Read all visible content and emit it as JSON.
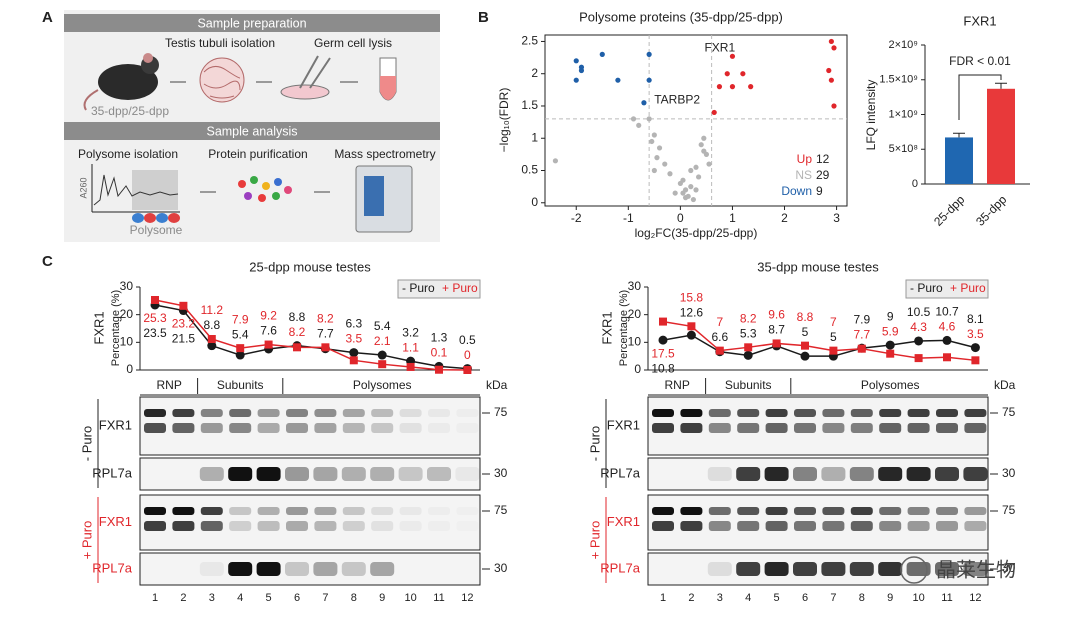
{
  "panel_labels": [
    "A",
    "B",
    "C"
  ],
  "panel_a": {
    "sections": [
      "Sample preparation",
      "Sample analysis"
    ],
    "steps": [
      "Testis tubuli isolation",
      "Germ cell lysis",
      "Polysome isolation",
      "Protein purification",
      "Mass spectrometry"
    ],
    "sample_label": "35-dpp/25-dpp",
    "polysome_label": "Polysome",
    "axis_label": "A260"
  },
  "chart_data": [
    {
      "type": "scatter",
      "title": "Polysome proteins (35-dpp/25-dpp)",
      "x_label": "log₂FC(35-dpp/25-dpp)",
      "y_label": "−log₁₀(FDR)",
      "xlim": [
        -2.6,
        3.2
      ],
      "ylim": [
        -0.05,
        2.6
      ],
      "xticks": [
        -2,
        -1,
        0,
        1,
        2,
        3
      ],
      "yticks": [
        0,
        0.5,
        1,
        1.5,
        2,
        2.5
      ],
      "thresholds": {
        "x": [
          -0.6,
          0.6
        ],
        "y": 1.3
      },
      "annotations": [
        "FXR1",
        "TARBP2"
      ],
      "series": [
        {
          "name": "Up",
          "count": 12,
          "color": "#e0262b",
          "x": [
            2.9,
            2.95,
            2.85,
            2.9,
            2.95,
            1.0,
            0.9,
            1.2,
            0.75,
            1.0,
            1.35,
            0.65
          ],
          "y": [
            2.5,
            2.4,
            2.05,
            1.9,
            1.5,
            2.27,
            2.0,
            2.0,
            1.8,
            1.8,
            1.8,
            1.4
          ]
        },
        {
          "name": "NS",
          "count": 29,
          "color": "#b4b4b4",
          "x": [
            -2.4,
            -0.8,
            -0.9,
            -0.6,
            -0.5,
            -0.4,
            -0.45,
            -0.3,
            -0.5,
            -0.2,
            0,
            0.05,
            0.1,
            0.15,
            0.2,
            0.3,
            0.35,
            0.4,
            0.45,
            0.5,
            0.55,
            0.3,
            0.25,
            -0.1,
            0.05,
            0.2,
            0.45,
            -0.55,
            0.1
          ],
          "y": [
            0.65,
            1.2,
            1.3,
            1.3,
            1.05,
            0.85,
            0.7,
            0.6,
            0.5,
            0.45,
            0.3,
            0.15,
            0.2,
            0.1,
            0.25,
            0.55,
            0.4,
            0.9,
            0.8,
            0.75,
            0.6,
            0.2,
            0.05,
            0.15,
            0.35,
            0.5,
            1.0,
            0.95,
            0.08
          ]
        },
        {
          "name": "Down",
          "count": 9,
          "color": "#1f5fa8",
          "x": [
            -2.0,
            -1.5,
            -1.9,
            -1.9,
            -2.0,
            -1.2,
            -0.6,
            -0.6,
            -0.7
          ],
          "y": [
            2.2,
            2.3,
            2.1,
            2.05,
            1.9,
            1.9,
            1.9,
            2.3,
            1.55
          ]
        }
      ]
    },
    {
      "type": "bar",
      "title": "FXR1",
      "y_label": "LFQ intensity",
      "categories": [
        "25-dpp",
        "35-dpp"
      ],
      "values": [
        670000000,
        1370000000
      ],
      "errors": [
        60000000,
        80000000
      ],
      "colors": [
        "#1f67b1",
        "#e8393a"
      ],
      "annotation": "FDR < 0.01",
      "ylim": [
        0,
        2000000000
      ],
      "yticks": [
        {
          "value": 0,
          "label": "0"
        },
        {
          "value": 500000000,
          "label": "5×10⁸"
        },
        {
          "value": 1000000000,
          "label": "1×10⁹"
        },
        {
          "value": 1500000000,
          "label": "1.5×10⁹"
        },
        {
          "value": 2000000000,
          "label": "2×10⁹"
        }
      ]
    },
    {
      "type": "line",
      "title": "25-dpp mouse testes",
      "protein": "FXR1",
      "y_label": "Percentage (%)",
      "categories": [
        "1",
        "2",
        "3",
        "4",
        "5",
        "6",
        "7",
        "8",
        "9",
        "10",
        "11",
        "12"
      ],
      "ylim": [
        0,
        30
      ],
      "yticks": [
        0,
        10,
        20,
        30
      ],
      "legend": "top-right",
      "series": [
        {
          "name": "- Puro",
          "color": "#1a1a1a",
          "values": [
            23.5,
            21.5,
            8.8,
            5.4,
            7.6,
            8.8,
            7.7,
            6.3,
            5.4,
            3.2,
            1.3,
            0.5
          ]
        },
        {
          "name": "+ Puro",
          "color": "#e0262b",
          "values": [
            25.3,
            23.2,
            11.2,
            7.9,
            9.2,
            8.2,
            8.2,
            3.5,
            2.1,
            1.1,
            0.1,
            0
          ]
        }
      ]
    },
    {
      "type": "line",
      "title": "35-dpp mouse testes",
      "protein": "FXR1",
      "y_label": "Percentage (%)",
      "categories": [
        "1",
        "2",
        "3",
        "4",
        "5",
        "6",
        "7",
        "8",
        "9",
        "10",
        "11",
        "12"
      ],
      "ylim": [
        0,
        30
      ],
      "yticks": [
        0,
        10,
        20,
        30
      ],
      "legend": "top-right",
      "series": [
        {
          "name": "- Puro",
          "color": "#1a1a1a",
          "values": [
            10.8,
            12.6,
            6.6,
            5.3,
            8.7,
            5.0,
            5.0,
            7.9,
            9.0,
            10.5,
            10.7,
            8.1
          ]
        },
        {
          "name": "+ Puro",
          "color": "#e0262b",
          "values": [
            17.5,
            15.8,
            7.0,
            8.2,
            9.6,
            8.8,
            7.0,
            7.7,
            5.9,
            4.3,
            4.6,
            3.5
          ]
        }
      ]
    }
  ],
  "blots": {
    "fractions": [
      "RNP",
      "Subunits",
      "Polysomes"
    ],
    "kda_label": "kDa",
    "conditions": [
      "- Puro",
      "+ Puro"
    ],
    "proteins": [
      "FXR1",
      "RPL7a"
    ],
    "markers": [
      "75",
      "30"
    ]
  },
  "watermark": "晶莱生物"
}
